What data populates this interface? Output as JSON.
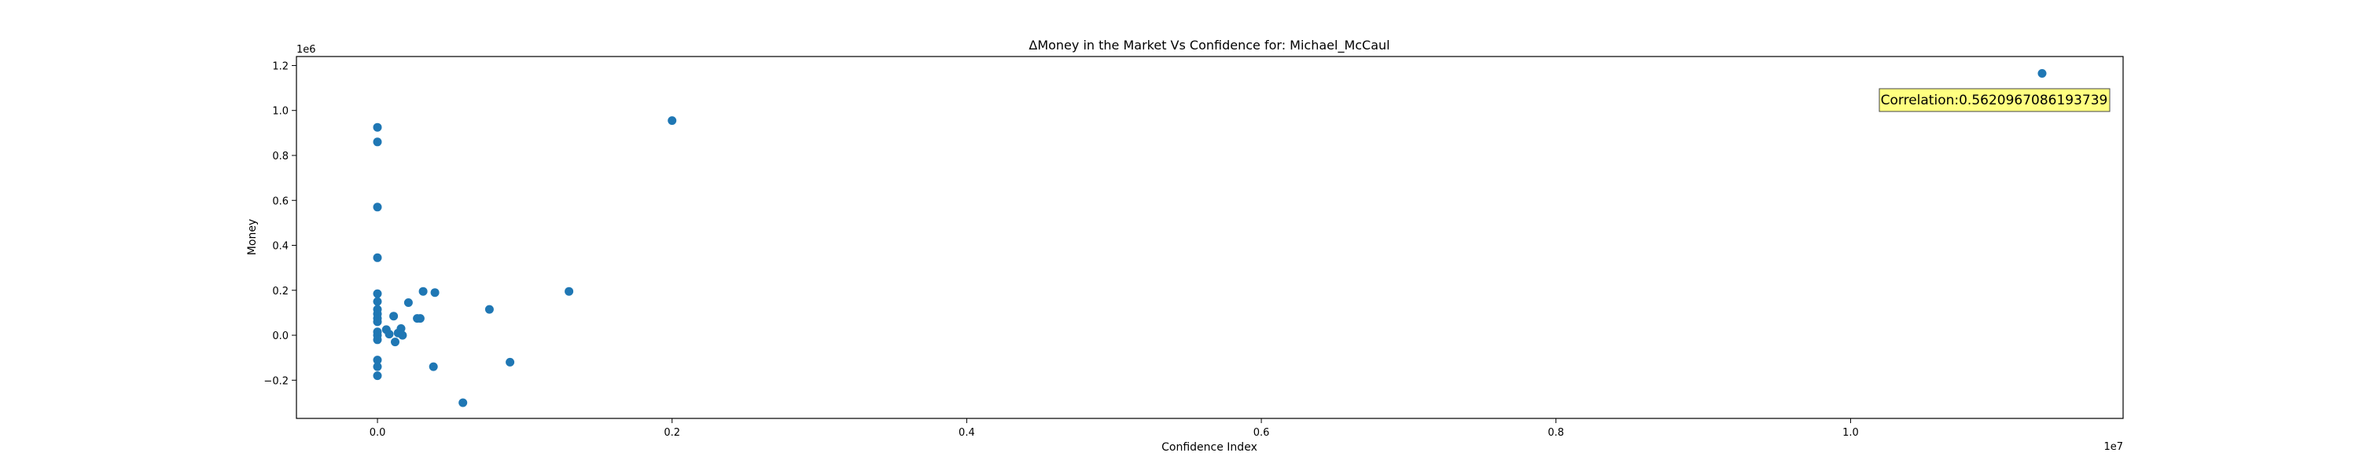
{
  "chart_data": {
    "type": "scatter",
    "title": "ΔMoney in the Market Vs Confidence for: Michael_McCaul",
    "xlabel": "Confidence Index",
    "ylabel": "Money",
    "x_offset_label": "1e7",
    "y_offset_label": "1e6",
    "xlim": [
      -0.055,
      1.185
    ],
    "ylim": [
      -0.37,
      1.24
    ],
    "x_ticks": [
      0.0,
      0.2,
      0.4,
      0.6,
      0.8,
      1.0
    ],
    "x_tick_labels": [
      "0.0",
      "0.2",
      "0.4",
      "0.6",
      "0.8",
      "1.0"
    ],
    "y_ticks": [
      -0.2,
      0.0,
      0.2,
      0.4,
      0.6,
      0.8,
      1.0,
      1.2
    ],
    "y_tick_labels": [
      "−0.2",
      "0.0",
      "0.2",
      "0.4",
      "0.6",
      "0.8",
      "1.0",
      "1.2"
    ],
    "grid": false,
    "marker_color": "#1f77b4",
    "annotation": {
      "text": "Correlation:0.5620967086193739",
      "position": "top-right",
      "background": "#ffff80"
    },
    "points": [
      {
        "x": 0.0,
        "y": 0.925
      },
      {
        "x": 0.0,
        "y": 0.86
      },
      {
        "x": 0.0,
        "y": 0.57
      },
      {
        "x": 0.0,
        "y": 0.345
      },
      {
        "x": 0.0,
        "y": 0.185
      },
      {
        "x": 0.0,
        "y": 0.15
      },
      {
        "x": 0.0,
        "y": 0.115
      },
      {
        "x": 0.0,
        "y": 0.095
      },
      {
        "x": 0.0,
        "y": 0.075
      },
      {
        "x": 0.0,
        "y": 0.06
      },
      {
        "x": 0.0,
        "y": 0.015
      },
      {
        "x": 0.0,
        "y": 0.0
      },
      {
        "x": 0.0,
        "y": -0.02
      },
      {
        "x": 0.0,
        "y": -0.11
      },
      {
        "x": 0.0,
        "y": -0.14
      },
      {
        "x": 0.0,
        "y": -0.18
      },
      {
        "x": 0.006,
        "y": 0.025
      },
      {
        "x": 0.008,
        "y": 0.005
      },
      {
        "x": 0.011,
        "y": 0.085
      },
      {
        "x": 0.012,
        "y": -0.03
      },
      {
        "x": 0.014,
        "y": 0.01
      },
      {
        "x": 0.016,
        "y": 0.03
      },
      {
        "x": 0.017,
        "y": 0.0
      },
      {
        "x": 0.021,
        "y": 0.145
      },
      {
        "x": 0.027,
        "y": 0.075
      },
      {
        "x": 0.029,
        "y": 0.075
      },
      {
        "x": 0.031,
        "y": 0.195
      },
      {
        "x": 0.038,
        "y": -0.14
      },
      {
        "x": 0.039,
        "y": 0.19
      },
      {
        "x": 0.058,
        "y": -0.3
      },
      {
        "x": 0.076,
        "y": 0.115
      },
      {
        "x": 0.09,
        "y": -0.12
      },
      {
        "x": 0.13,
        "y": 0.195
      },
      {
        "x": 0.2,
        "y": 0.955
      },
      {
        "x": 1.13,
        "y": 1.165
      }
    ]
  }
}
